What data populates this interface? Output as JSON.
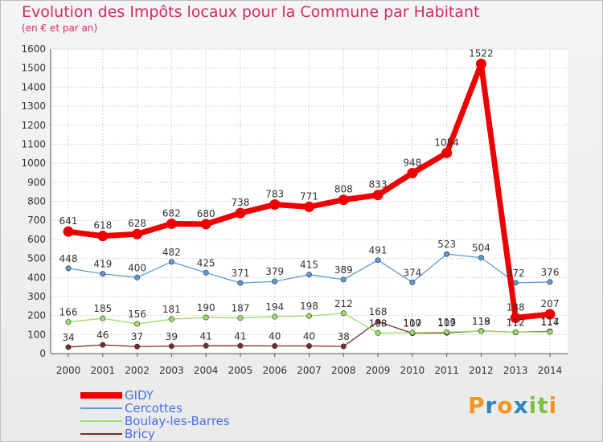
{
  "chart_data": {
    "type": "line",
    "title": "Evolution des Impôts locaux pour la Commune par Habitant",
    "subtitle": "(en € et par an)",
    "xlabel": "",
    "ylabel": "",
    "ylim": [
      0,
      1600
    ],
    "yticks": [
      "0",
      "100",
      "200",
      "300",
      "400",
      "500",
      "600",
      "700",
      "800",
      "900",
      "1000",
      "1100",
      "1200",
      "1300",
      "1400",
      "1500",
      "1600"
    ],
    "x": [
      "2000",
      "2001",
      "2002",
      "2003",
      "2004",
      "2005",
      "2006",
      "2007",
      "2008",
      "2009",
      "2010",
      "2011",
      "2012",
      "2013",
      "2014"
    ],
    "grid": true,
    "legend_position": "bottom-left",
    "series": [
      {
        "name": "GIDY",
        "color": "#ee0000",
        "values": [
          641,
          618,
          628,
          682,
          680,
          738,
          783,
          771,
          808,
          833,
          948,
          1054,
          1522,
          188,
          207
        ],
        "labels": [
          "641",
          "618",
          "628",
          "682",
          "680",
          "738",
          "783",
          "771",
          "808",
          "833",
          "948",
          "1054",
          "1522",
          "188",
          "207"
        ]
      },
      {
        "name": "Cercottes",
        "color": "#5b9bd5",
        "values": [
          448,
          419,
          400,
          482,
          425,
          371,
          379,
          415,
          389,
          491,
          374,
          523,
          504,
          372,
          376
        ],
        "labels": [
          "448",
          "419",
          "400",
          "482",
          "425",
          "371",
          "379",
          "415",
          "389",
          "491",
          "374",
          "523",
          "504",
          "372",
          "376"
        ]
      },
      {
        "name": "Boulay-les-Barres",
        "color": "#99e066",
        "values": [
          166,
          185,
          156,
          181,
          190,
          187,
          194,
          198,
          212,
          108,
          110,
          113,
          118,
          112,
          114
        ],
        "labels": [
          "166",
          "185",
          "156",
          "181",
          "190",
          "187",
          "194",
          "198",
          "212",
          "108",
          "110",
          "113",
          "118",
          "112",
          "114"
        ]
      },
      {
        "name": "Bricy",
        "color": "#7a2c2c",
        "values": [
          34,
          46,
          37,
          39,
          41,
          41,
          40,
          40,
          38,
          168,
          107,
          109,
          119,
          112,
          117
        ],
        "labels": [
          "34",
          "46",
          "37",
          "39",
          "41",
          "41",
          "40",
          "40",
          "38",
          "168",
          "107",
          "109",
          "119",
          "112",
          "117"
        ]
      }
    ]
  },
  "logo": {
    "text": "Proxiti",
    "letters": [
      "P",
      "r",
      "o",
      "x",
      "i",
      "t",
      "i"
    ],
    "colors": [
      "#f7941d",
      "#2e86c1",
      "#f7941d",
      "#2e86c1",
      "#7cc242",
      "#7cc242",
      "#f7941d"
    ]
  }
}
